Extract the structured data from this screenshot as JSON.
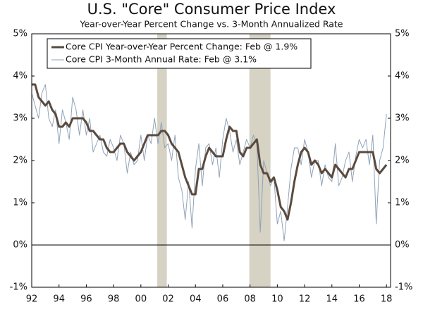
{
  "chart_data": {
    "type": "line",
    "title": "U.S. \"Core\" Consumer Price Index",
    "subtitle": "Year-over-Year Percent Change vs. 3-Month Annualized Rate",
    "x": [
      1992,
      1992.25,
      1992.5,
      1992.75,
      1993,
      1993.25,
      1993.5,
      1993.75,
      1994,
      1994.25,
      1994.5,
      1994.75,
      1995,
      1995.25,
      1995.5,
      1995.75,
      1996,
      1996.25,
      1996.5,
      1996.75,
      1997,
      1997.25,
      1997.5,
      1997.75,
      1998,
      1998.25,
      1998.5,
      1998.75,
      1999,
      1999.25,
      1999.5,
      1999.75,
      2000,
      2000.25,
      2000.5,
      2000.75,
      2001,
      2001.25,
      2001.5,
      2001.75,
      2002,
      2002.25,
      2002.5,
      2002.75,
      2003,
      2003.25,
      2003.5,
      2003.75,
      2004,
      2004.25,
      2004.5,
      2004.75,
      2005,
      2005.25,
      2005.5,
      2005.75,
      2006,
      2006.25,
      2006.5,
      2006.75,
      2007,
      2007.25,
      2007.5,
      2007.75,
      2008,
      2008.25,
      2008.5,
      2008.75,
      2009,
      2009.25,
      2009.5,
      2009.75,
      2010,
      2010.25,
      2010.5,
      2010.75,
      2011,
      2011.25,
      2011.5,
      2011.75,
      2012,
      2012.25,
      2012.5,
      2012.75,
      2013,
      2013.25,
      2013.5,
      2013.75,
      2014,
      2014.25,
      2014.5,
      2014.75,
      2015,
      2015.25,
      2015.5,
      2015.75,
      2016,
      2016.25,
      2016.5,
      2016.75,
      2017,
      2017.25,
      2017.5,
      2017.75,
      2018
    ],
    "series": [
      {
        "name": "Core CPI Year-over-Year Percent Change: Feb @ 1.9%",
        "color": "#5a4a3e",
        "width": 3,
        "values": [
          3.8,
          3.8,
          3.5,
          3.4,
          3.3,
          3.4,
          3.2,
          3.1,
          2.8,
          2.8,
          2.9,
          2.8,
          3.0,
          3.0,
          3.0,
          3.0,
          2.9,
          2.7,
          2.7,
          2.6,
          2.5,
          2.5,
          2.3,
          2.2,
          2.2,
          2.3,
          2.4,
          2.4,
          2.2,
          2.1,
          2.0,
          2.1,
          2.2,
          2.4,
          2.6,
          2.6,
          2.6,
          2.6,
          2.7,
          2.7,
          2.6,
          2.4,
          2.3,
          2.2,
          1.9,
          1.6,
          1.4,
          1.2,
          1.2,
          1.8,
          1.8,
          2.1,
          2.3,
          2.2,
          2.1,
          2.1,
          2.1,
          2.5,
          2.8,
          2.7,
          2.7,
          2.2,
          2.1,
          2.3,
          2.3,
          2.4,
          2.5,
          1.9,
          1.7,
          1.7,
          1.5,
          1.6,
          1.3,
          0.9,
          0.8,
          0.6,
          1.0,
          1.5,
          1.9,
          2.2,
          2.3,
          2.2,
          1.9,
          2.0,
          1.9,
          1.7,
          1.8,
          1.7,
          1.6,
          1.9,
          1.8,
          1.7,
          1.6,
          1.8,
          1.8,
          2.0,
          2.2,
          2.2,
          2.2,
          2.2,
          2.2,
          1.8,
          1.7,
          1.8,
          1.9
        ]
      },
      {
        "name": "Core CPI 3-Month Annual Rate: Feb @ 3.1%",
        "color": "#8fa3b8",
        "width": 1,
        "values": [
          3.6,
          3.3,
          3.0,
          3.6,
          3.8,
          3.0,
          2.8,
          3.2,
          2.4,
          3.2,
          2.9,
          2.5,
          3.5,
          3.2,
          2.6,
          3.2,
          2.6,
          3.0,
          2.2,
          2.4,
          2.6,
          2.2,
          2.1,
          2.5,
          2.3,
          2.0,
          2.6,
          2.4,
          1.7,
          2.2,
          1.9,
          2.0,
          2.6,
          2.0,
          2.6,
          2.4,
          3.0,
          2.4,
          2.9,
          2.3,
          2.4,
          2.0,
          2.6,
          1.6,
          1.3,
          0.6,
          1.5,
          0.4,
          1.8,
          2.4,
          1.4,
          2.3,
          2.4,
          1.9,
          2.3,
          1.6,
          2.5,
          3.0,
          2.7,
          2.2,
          2.5,
          1.9,
          2.2,
          2.5,
          2.3,
          2.6,
          2.4,
          0.3,
          2.0,
          1.7,
          1.4,
          1.6,
          0.5,
          0.8,
          0.1,
          0.9,
          1.8,
          2.3,
          2.3,
          1.9,
          2.5,
          2.2,
          1.6,
          2.0,
          2.0,
          1.4,
          1.9,
          1.6,
          1.5,
          2.4,
          1.4,
          1.6,
          2.0,
          2.2,
          1.5,
          2.1,
          2.5,
          2.3,
          2.5,
          1.9,
          2.6,
          0.5,
          2.0,
          2.3,
          3.1
        ]
      }
    ],
    "shaded_periods": [
      [
        2001.2,
        2001.9
      ],
      [
        2007.95,
        2009.5
      ]
    ],
    "shade_color": "#d6d2c4",
    "xlim": [
      1992,
      2018.3
    ],
    "xticks": [
      {
        "value": 1992,
        "label": "92"
      },
      {
        "value": 1994,
        "label": "94"
      },
      {
        "value": 1996,
        "label": "96"
      },
      {
        "value": 1998,
        "label": "98"
      },
      {
        "value": 2000,
        "label": "00"
      },
      {
        "value": 2002,
        "label": "02"
      },
      {
        "value": 2004,
        "label": "04"
      },
      {
        "value": 2006,
        "label": "06"
      },
      {
        "value": 2008,
        "label": "08"
      },
      {
        "value": 2010,
        "label": "10"
      },
      {
        "value": 2012,
        "label": "12"
      },
      {
        "value": 2014,
        "label": "14"
      },
      {
        "value": 2016,
        "label": "16"
      },
      {
        "value": 2018,
        "label": "18"
      }
    ],
    "ylim": [
      -1,
      5
    ],
    "yticks": [
      {
        "value": -1,
        "label": "-1%"
      },
      {
        "value": 0,
        "label": "0%"
      },
      {
        "value": 1,
        "label": "1%"
      },
      {
        "value": 2,
        "label": "2%"
      },
      {
        "value": 3,
        "label": "3%"
      },
      {
        "value": 4,
        "label": "4%"
      },
      {
        "value": 5,
        "label": "5%"
      }
    ],
    "y2lim": [
      -1,
      5
    ],
    "y2ticks": [
      {
        "value": -1,
        "label": "-1%"
      },
      {
        "value": 0,
        "label": "0%"
      },
      {
        "value": 1,
        "label": "1%"
      },
      {
        "value": 2,
        "label": "2%"
      },
      {
        "value": 3,
        "label": "3%"
      },
      {
        "value": 4,
        "label": "4%"
      },
      {
        "value": 5,
        "label": "5%"
      }
    ],
    "zero_line": true,
    "legend": "top-left"
  }
}
